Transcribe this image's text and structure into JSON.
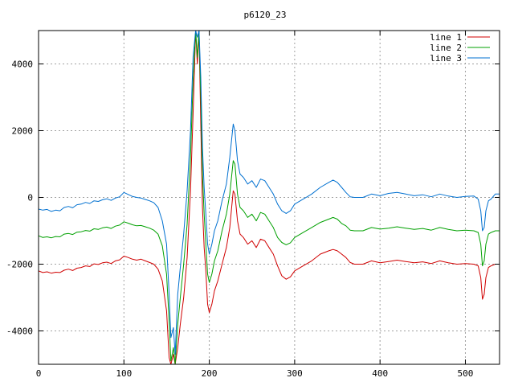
{
  "chart_data": {
    "type": "line",
    "title": "p6120_23",
    "xlabel": "",
    "ylabel": "",
    "xlim": [
      0,
      540
    ],
    "ylim": [
      -5000,
      5000
    ],
    "x_ticks": [
      0,
      100,
      200,
      300,
      400,
      500
    ],
    "y_ticks": [
      -4000,
      -2000,
      0,
      2000,
      4000
    ],
    "grid": true,
    "legend_position": "top-right",
    "series": [
      {
        "name": "line 1",
        "color": "#d00000",
        "points": [
          [
            0,
            -2200
          ],
          [
            5,
            -2250
          ],
          [
            10,
            -2230
          ],
          [
            15,
            -2270
          ],
          [
            20,
            -2240
          ],
          [
            25,
            -2250
          ],
          [
            30,
            -2180
          ],
          [
            35,
            -2150
          ],
          [
            40,
            -2190
          ],
          [
            45,
            -2120
          ],
          [
            50,
            -2100
          ],
          [
            55,
            -2050
          ],
          [
            60,
            -2070
          ],
          [
            65,
            -1990
          ],
          [
            70,
            -2010
          ],
          [
            75,
            -1960
          ],
          [
            80,
            -1940
          ],
          [
            85,
            -1980
          ],
          [
            90,
            -1900
          ],
          [
            95,
            -1870
          ],
          [
            100,
            -1760
          ],
          [
            105,
            -1800
          ],
          [
            110,
            -1850
          ],
          [
            115,
            -1880
          ],
          [
            120,
            -1850
          ],
          [
            125,
            -1900
          ],
          [
            130,
            -1950
          ],
          [
            135,
            -2000
          ],
          [
            140,
            -2150
          ],
          [
            145,
            -2500
          ],
          [
            150,
            -3400
          ],
          [
            153,
            -4800
          ],
          [
            155,
            -5000
          ],
          [
            158,
            -4700
          ],
          [
            160,
            -5000
          ],
          [
            163,
            -4500
          ],
          [
            166,
            -3800
          ],
          [
            170,
            -3000
          ],
          [
            174,
            -1800
          ],
          [
            178,
            200
          ],
          [
            181,
            2500
          ],
          [
            184,
            5000
          ],
          [
            186,
            4000
          ],
          [
            188,
            5000
          ],
          [
            190,
            2200
          ],
          [
            192,
            -300
          ],
          [
            194,
            -1500
          ],
          [
            196,
            -2200
          ],
          [
            198,
            -3200
          ],
          [
            200,
            -3450
          ],
          [
            203,
            -3200
          ],
          [
            206,
            -2800
          ],
          [
            210,
            -2500
          ],
          [
            215,
            -2000
          ],
          [
            220,
            -1500
          ],
          [
            224,
            -900
          ],
          [
            228,
            200
          ],
          [
            230,
            100
          ],
          [
            233,
            -700
          ],
          [
            236,
            -1100
          ],
          [
            240,
            -1200
          ],
          [
            245,
            -1400
          ],
          [
            250,
            -1300
          ],
          [
            255,
            -1500
          ],
          [
            260,
            -1250
          ],
          [
            265,
            -1300
          ],
          [
            270,
            -1500
          ],
          [
            275,
            -1700
          ],
          [
            280,
            -2050
          ],
          [
            285,
            -2350
          ],
          [
            290,
            -2450
          ],
          [
            295,
            -2380
          ],
          [
            300,
            -2200
          ],
          [
            310,
            -2050
          ],
          [
            320,
            -1900
          ],
          [
            330,
            -1700
          ],
          [
            340,
            -1600
          ],
          [
            345,
            -1560
          ],
          [
            350,
            -1600
          ],
          [
            355,
            -1700
          ],
          [
            360,
            -1800
          ],
          [
            365,
            -1950
          ],
          [
            370,
            -2000
          ],
          [
            380,
            -2000
          ],
          [
            390,
            -1900
          ],
          [
            400,
            -1960
          ],
          [
            410,
            -1920
          ],
          [
            420,
            -1880
          ],
          [
            430,
            -1920
          ],
          [
            440,
            -1960
          ],
          [
            450,
            -1930
          ],
          [
            460,
            -1980
          ],
          [
            470,
            -1900
          ],
          [
            480,
            -1960
          ],
          [
            490,
            -2000
          ],
          [
            500,
            -1980
          ],
          [
            510,
            -2000
          ],
          [
            515,
            -2050
          ],
          [
            518,
            -2400
          ],
          [
            520,
            -3050
          ],
          [
            522,
            -2900
          ],
          [
            524,
            -2400
          ],
          [
            527,
            -2100
          ],
          [
            530,
            -2050
          ],
          [
            535,
            -2000
          ],
          [
            540,
            -2000
          ]
        ]
      },
      {
        "name": "line 2",
        "color": "#00a000",
        "points": [
          [
            0,
            -1150
          ],
          [
            5,
            -1200
          ],
          [
            10,
            -1180
          ],
          [
            15,
            -1210
          ],
          [
            20,
            -1170
          ],
          [
            25,
            -1180
          ],
          [
            30,
            -1100
          ],
          [
            35,
            -1080
          ],
          [
            40,
            -1110
          ],
          [
            45,
            -1040
          ],
          [
            50,
            -1030
          ],
          [
            55,
            -990
          ],
          [
            60,
            -1010
          ],
          [
            65,
            -940
          ],
          [
            70,
            -960
          ],
          [
            75,
            -910
          ],
          [
            80,
            -890
          ],
          [
            85,
            -930
          ],
          [
            90,
            -860
          ],
          [
            95,
            -830
          ],
          [
            100,
            -730
          ],
          [
            105,
            -770
          ],
          [
            110,
            -820
          ],
          [
            115,
            -850
          ],
          [
            120,
            -840
          ],
          [
            125,
            -880
          ],
          [
            130,
            -920
          ],
          [
            135,
            -980
          ],
          [
            140,
            -1100
          ],
          [
            145,
            -1450
          ],
          [
            150,
            -2300
          ],
          [
            153,
            -3700
          ],
          [
            155,
            -4900
          ],
          [
            158,
            -4500
          ],
          [
            160,
            -5000
          ],
          [
            163,
            -3800
          ],
          [
            166,
            -3000
          ],
          [
            170,
            -2000
          ],
          [
            174,
            -800
          ],
          [
            178,
            1200
          ],
          [
            181,
            3500
          ],
          [
            184,
            5000
          ],
          [
            186,
            4200
          ],
          [
            188,
            5000
          ],
          [
            190,
            3000
          ],
          [
            192,
            700
          ],
          [
            194,
            -500
          ],
          [
            196,
            -1400
          ],
          [
            198,
            -2300
          ],
          [
            200,
            -2550
          ],
          [
            203,
            -2300
          ],
          [
            206,
            -1900
          ],
          [
            210,
            -1600
          ],
          [
            215,
            -1000
          ],
          [
            220,
            -500
          ],
          [
            224,
            100
          ],
          [
            228,
            1100
          ],
          [
            230,
            1000
          ],
          [
            233,
            100
          ],
          [
            236,
            -300
          ],
          [
            240,
            -400
          ],
          [
            245,
            -600
          ],
          [
            250,
            -500
          ],
          [
            255,
            -700
          ],
          [
            260,
            -450
          ],
          [
            265,
            -500
          ],
          [
            270,
            -700
          ],
          [
            275,
            -900
          ],
          [
            280,
            -1200
          ],
          [
            285,
            -1350
          ],
          [
            290,
            -1420
          ],
          [
            295,
            -1360
          ],
          [
            300,
            -1200
          ],
          [
            310,
            -1050
          ],
          [
            320,
            -900
          ],
          [
            330,
            -750
          ],
          [
            340,
            -650
          ],
          [
            345,
            -600
          ],
          [
            350,
            -650
          ],
          [
            355,
            -780
          ],
          [
            360,
            -850
          ],
          [
            365,
            -980
          ],
          [
            370,
            -1000
          ],
          [
            380,
            -1000
          ],
          [
            390,
            -900
          ],
          [
            400,
            -950
          ],
          [
            410,
            -920
          ],
          [
            420,
            -880
          ],
          [
            430,
            -920
          ],
          [
            440,
            -960
          ],
          [
            450,
            -930
          ],
          [
            460,
            -980
          ],
          [
            470,
            -900
          ],
          [
            480,
            -960
          ],
          [
            490,
            -1000
          ],
          [
            500,
            -980
          ],
          [
            510,
            -1000
          ],
          [
            515,
            -1050
          ],
          [
            518,
            -1400
          ],
          [
            520,
            -2050
          ],
          [
            522,
            -1900
          ],
          [
            524,
            -1400
          ],
          [
            527,
            -1100
          ],
          [
            530,
            -1050
          ],
          [
            535,
            -1000
          ],
          [
            540,
            -1000
          ]
        ]
      },
      {
        "name": "line 3",
        "color": "#0070d0",
        "points": [
          [
            0,
            -350
          ],
          [
            5,
            -380
          ],
          [
            10,
            -360
          ],
          [
            15,
            -420
          ],
          [
            20,
            -380
          ],
          [
            25,
            -400
          ],
          [
            30,
            -300
          ],
          [
            35,
            -270
          ],
          [
            40,
            -310
          ],
          [
            45,
            -220
          ],
          [
            50,
            -200
          ],
          [
            55,
            -150
          ],
          [
            60,
            -180
          ],
          [
            65,
            -100
          ],
          [
            70,
            -120
          ],
          [
            75,
            -70
          ],
          [
            80,
            -40
          ],
          [
            85,
            -90
          ],
          [
            90,
            -20
          ],
          [
            95,
            20
          ],
          [
            100,
            150
          ],
          [
            105,
            90
          ],
          [
            110,
            30
          ],
          [
            115,
            0
          ],
          [
            120,
            -20
          ],
          [
            125,
            -60
          ],
          [
            130,
            -100
          ],
          [
            135,
            -160
          ],
          [
            140,
            -300
          ],
          [
            145,
            -700
          ],
          [
            150,
            -1400
          ],
          [
            153,
            -2900
          ],
          [
            155,
            -4200
          ],
          [
            158,
            -3900
          ],
          [
            160,
            -4700
          ],
          [
            163,
            -2900
          ],
          [
            166,
            -2100
          ],
          [
            170,
            -1100
          ],
          [
            174,
            200
          ],
          [
            178,
            2000
          ],
          [
            181,
            4200
          ],
          [
            184,
            5000
          ],
          [
            186,
            4800
          ],
          [
            188,
            5000
          ],
          [
            190,
            3600
          ],
          [
            192,
            1500
          ],
          [
            194,
            300
          ],
          [
            196,
            -500
          ],
          [
            198,
            -1400
          ],
          [
            200,
            -1700
          ],
          [
            203,
            -1400
          ],
          [
            206,
            -1000
          ],
          [
            210,
            -700
          ],
          [
            215,
            -100
          ],
          [
            220,
            400
          ],
          [
            224,
            1200
          ],
          [
            228,
            2200
          ],
          [
            230,
            2000
          ],
          [
            233,
            1100
          ],
          [
            236,
            700
          ],
          [
            240,
            600
          ],
          [
            245,
            400
          ],
          [
            250,
            500
          ],
          [
            255,
            300
          ],
          [
            260,
            550
          ],
          [
            265,
            500
          ],
          [
            270,
            300
          ],
          [
            275,
            100
          ],
          [
            280,
            -200
          ],
          [
            285,
            -400
          ],
          [
            290,
            -480
          ],
          [
            295,
            -400
          ],
          [
            300,
            -200
          ],
          [
            310,
            -50
          ],
          [
            320,
            100
          ],
          [
            330,
            300
          ],
          [
            340,
            450
          ],
          [
            345,
            520
          ],
          [
            350,
            450
          ],
          [
            355,
            300
          ],
          [
            360,
            150
          ],
          [
            365,
            20
          ],
          [
            370,
            0
          ],
          [
            380,
            0
          ],
          [
            390,
            100
          ],
          [
            400,
            50
          ],
          [
            410,
            120
          ],
          [
            420,
            150
          ],
          [
            430,
            100
          ],
          [
            440,
            50
          ],
          [
            450,
            80
          ],
          [
            460,
            20
          ],
          [
            470,
            100
          ],
          [
            480,
            40
          ],
          [
            490,
            0
          ],
          [
            500,
            30
          ],
          [
            510,
            40
          ],
          [
            515,
            -50
          ],
          [
            518,
            -400
          ],
          [
            520,
            -1000
          ],
          [
            522,
            -900
          ],
          [
            524,
            -400
          ],
          [
            527,
            -100
          ],
          [
            530,
            -50
          ],
          [
            535,
            100
          ],
          [
            540,
            100
          ]
        ]
      }
    ]
  }
}
